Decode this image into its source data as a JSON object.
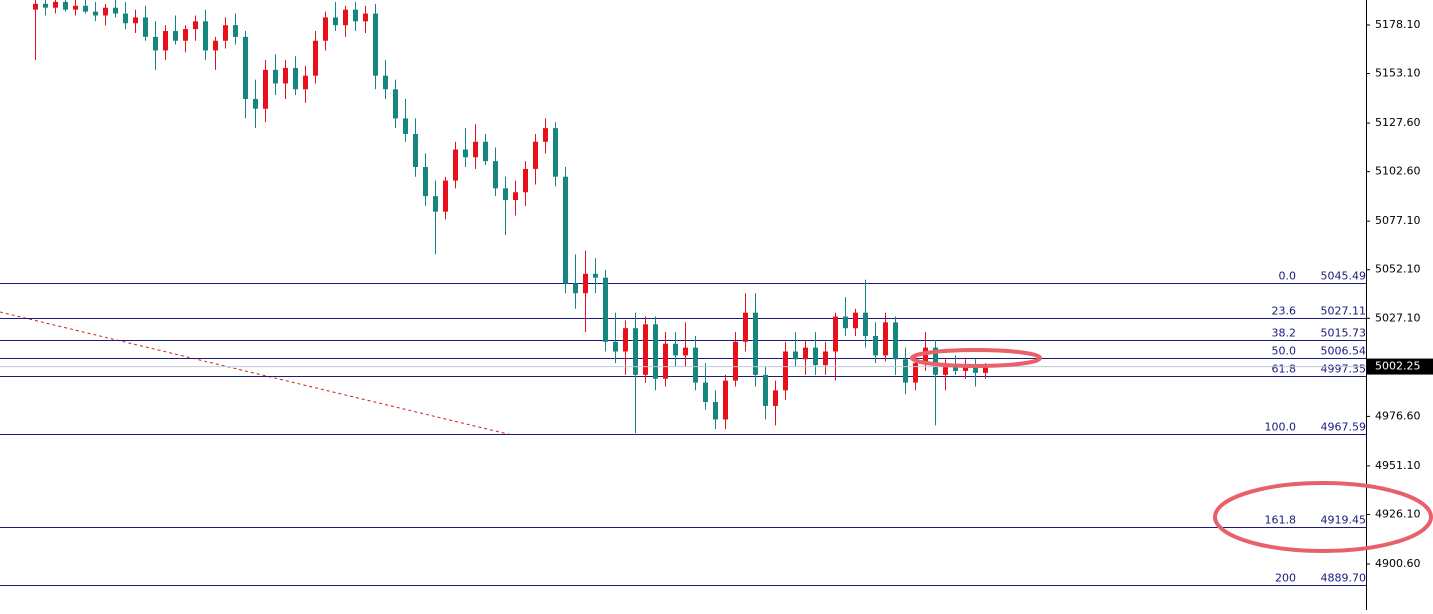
{
  "chart_data": {
    "type": "candlestick",
    "up_color": "#e8101a",
    "down_color": "#16867f",
    "ylim": [
      4876.92,
      5190.97
    ],
    "yticks": [
      {
        "value": 5178.1,
        "label": "5178.10"
      },
      {
        "value": 5153.1,
        "label": "5153.10"
      },
      {
        "value": 5127.6,
        "label": "5127.60"
      },
      {
        "value": 5102.6,
        "label": "5102.60"
      },
      {
        "value": 5077.1,
        "label": "5077.10"
      },
      {
        "value": 5052.1,
        "label": "5052.10"
      },
      {
        "value": 5027.1,
        "label": "5027.10"
      },
      {
        "value": 4976.6,
        "label": "4976.60"
      },
      {
        "value": 4951.1,
        "label": "4951.10"
      },
      {
        "value": 4926.1,
        "label": "4926.10"
      },
      {
        "value": 4900.6,
        "label": "4900.60"
      }
    ],
    "last_price": 5002.25,
    "fib_color": "#1a1a80",
    "fib_levels": [
      {
        "ratio": "0.0",
        "price": 5045.49
      },
      {
        "ratio": "23.6",
        "price": 5027.11
      },
      {
        "ratio": "38.2",
        "price": 5015.73
      },
      {
        "ratio": "50.0",
        "price": 5006.54
      },
      {
        "ratio": "61.8",
        "price": 4997.35
      },
      {
        "ratio": "100.0",
        "price": 4967.59
      },
      {
        "ratio": "161.8",
        "price": 4919.45
      },
      {
        "ratio": "200",
        "price": {
          "value": 4889.7,
          "label": "4889.70"
        }
      }
    ],
    "open": [
      5186,
      5189,
      5187,
      5190,
      5186,
      5188,
      5185,
      5183,
      5187,
      5184,
      5179,
      5182,
      5172,
      5165,
      5175,
      5170,
      5176,
      5180,
      5165,
      5170,
      5178,
      5172,
      5140,
      5135,
      5155,
      5148,
      5156,
      5145,
      5152,
      5170,
      5182,
      5178,
      5186,
      5180,
      5184,
      5152,
      5145,
      5130,
      5122,
      5105,
      5090,
      5082,
      5098,
      5114,
      5110,
      5118,
      5108,
      5094,
      5088,
      5092,
      5104,
      5118,
      5125,
      5100,
      5045,
      5040,
      5050,
      5048,
      5015,
      5010,
      5022,
      4998,
      5024,
      4996,
      5014,
      5008,
      5012,
      4994,
      4984,
      4975,
      4995,
      5015,
      5030,
      4998,
      4982,
      4990,
      5010,
      5006,
      5012,
      5003,
      5010,
      5028,
      5022,
      5030,
      5018,
      5008,
      5025,
      5006,
      4994,
      5004,
      5012,
      4998,
      5002,
      5000,
      5003,
      4999
    ],
    "high": [
      5195,
      5195,
      5193,
      5195,
      5192,
      5194,
      5190,
      5189,
      5192,
      5190,
      5186,
      5188,
      5180,
      5178,
      5183,
      5178,
      5183,
      5186,
      5172,
      5182,
      5184,
      5175,
      5150,
      5160,
      5163,
      5160,
      5162,
      5157,
      5175,
      5185,
      5190,
      5188,
      5190,
      5188,
      5189,
      5160,
      5150,
      5140,
      5130,
      5112,
      5098,
      5100,
      5118,
      5125,
      5127,
      5122,
      5115,
      5100,
      5098,
      5108,
      5122,
      5130,
      5128,
      5105,
      5060,
      5062,
      5058,
      5052,
      5030,
      5026,
      5030,
      5028,
      5028,
      5020,
      5020,
      5025,
      5018,
      5004,
      4990,
      4998,
      5020,
      5040,
      5040,
      5002,
      4995,
      5015,
      5020,
      5016,
      5020,
      5015,
      5030,
      5038,
      5032,
      5047,
      5025,
      5030,
      5028,
      5012,
      5008,
      5020,
      5016,
      5006,
      5008,
      5006,
      5006,
      5004
    ],
    "low": [
      5160,
      5183,
      5184,
      5185,
      5183,
      5184,
      5180,
      5178,
      5182,
      5176,
      5174,
      5170,
      5155,
      5160,
      5168,
      5164,
      5170,
      5160,
      5155,
      5166,
      5168,
      5130,
      5125,
      5128,
      5142,
      5140,
      5142,
      5138,
      5148,
      5165,
      5175,
      5172,
      5175,
      5174,
      5145,
      5140,
      5125,
      5118,
      5100,
      5085,
      5060,
      5078,
      5094,
      5105,
      5104,
      5106,
      5090,
      5070,
      5080,
      5085,
      5096,
      5112,
      5095,
      5040,
      5032,
      5020,
      5040,
      5010,
      5004,
      4998,
      4968,
      4994,
      4990,
      4992,
      5002,
      5002,
      4990,
      4980,
      4970,
      4970,
      4992,
      5010,
      4992,
      4975,
      4972,
      4985,
      5002,
      4998,
      4998,
      4998,
      4995,
      5018,
      5018,
      5012,
      5004,
      5005,
      4998,
      4988,
      4990,
      5000,
      4972,
      4990,
      4998,
      4996,
      4992,
      4996
    ],
    "close": [
      5189,
      5187,
      5190,
      5186,
      5188,
      5185,
      5183,
      5187,
      5184,
      5179,
      5182,
      5172,
      5165,
      5175,
      5170,
      5176,
      5180,
      5165,
      5170,
      5178,
      5172,
      5140,
      5135,
      5155,
      5148,
      5156,
      5145,
      5152,
      5170,
      5182,
      5178,
      5186,
      5180,
      5184,
      5152,
      5145,
      5130,
      5122,
      5105,
      5090,
      5082,
      5098,
      5114,
      5110,
      5118,
      5108,
      5094,
      5088,
      5092,
      5104,
      5118,
      5125,
      5100,
      5045,
      5040,
      5050,
      5048,
      5015,
      5010,
      5022,
      4998,
      5024,
      4996,
      5014,
      5008,
      5012,
      4994,
      4984,
      4975,
      4995,
      5015,
      5030,
      4998,
      4982,
      4990,
      5010,
      5006,
      5012,
      5003,
      5010,
      5028,
      5022,
      5030,
      5018,
      5008,
      5025,
      5006,
      4994,
      5004,
      5012,
      4998,
      5002,
      5000,
      5003,
      4999,
      5002.25
    ]
  }
}
